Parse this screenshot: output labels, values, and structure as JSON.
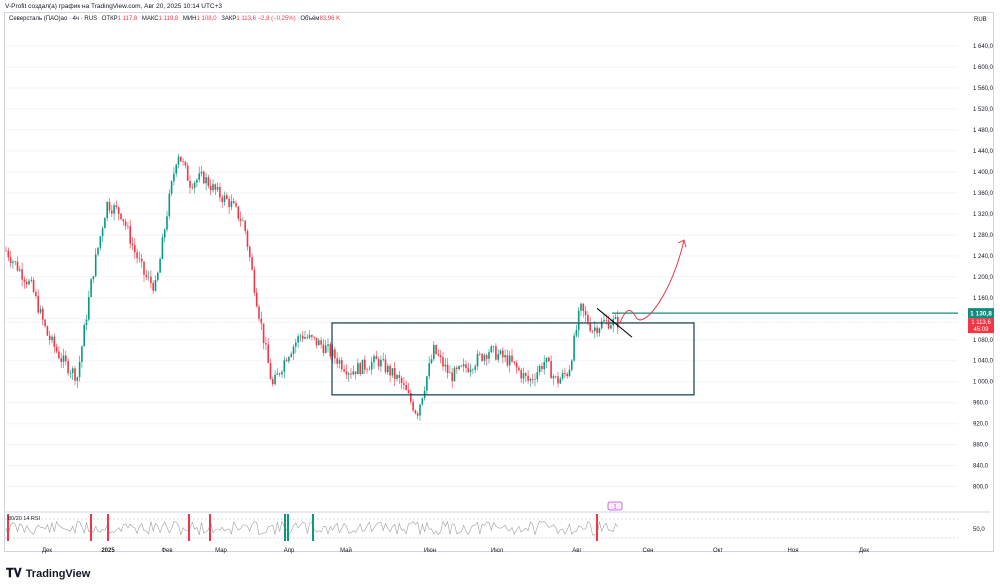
{
  "header": {
    "text": "V-Profit создал(а) график на TradingView.com, Авг 20, 2025 10:14 UTC+3"
  },
  "legend": {
    "symbol": "Северсталь (ПАО)ао · 4ч · RUS",
    "open_label": "ОТКР",
    "open_value": "1 117,8",
    "high_label": "МАКС",
    "high_value": "1 119,8",
    "low_label": "МИН",
    "low_value": "1 108,0",
    "close_label": "ЗАКР",
    "close_value": "1 113,6",
    "change_value": "−2,8 (−0,25%)",
    "volume_label": "Объём",
    "volume_value": "83,96 K"
  },
  "currency": "RUB",
  "rsi": {
    "label": "80/20 14 RSI",
    "level_label": "50,0"
  },
  "footer": {
    "brand": "TradingView"
  },
  "colors": {
    "up": "#089981",
    "down": "#f23645",
    "box": "#0d3d4a",
    "level_line": "#138a7e",
    "arrow": "#e53c4a",
    "rsi_line": "#9e9e9e",
    "grid": "#f0f3fa"
  },
  "chart_data": {
    "type": "candlestick",
    "ylim": [
      765,
      1680
    ],
    "y_ticks": [
      "1 640,0",
      "1 600,0",
      "1 560,0",
      "1 520,0",
      "1 480,0",
      "1 440,0",
      "1 400,0",
      "1 360,0",
      "1 320,0",
      "1 280,0",
      "1 240,0",
      "1 200,0",
      "1 160,0",
      "1 120,0",
      "1 080,0",
      "1 040,0",
      "1 000,0",
      "960,0",
      "920,0",
      "880,0",
      "840,0",
      "800,0"
    ],
    "x_labels": [
      "Дек",
      "2025",
      "Фев",
      "Мар",
      "Апр",
      "Май",
      "Июн",
      "Июл",
      "Авг",
      "Сен",
      "Окт",
      "Ноя",
      "Дек"
    ],
    "price_path": [
      [
        "Дек",
        1250
      ],
      [
        "Дек",
        1180
      ],
      [
        "Дек",
        1090
      ],
      [
        "Дек",
        1040
      ],
      [
        "2025",
        1010
      ],
      [
        "2025",
        1200
      ],
      [
        "2025",
        1340
      ],
      [
        "2025",
        1320
      ],
      [
        "Фев",
        1250
      ],
      [
        "Фев",
        1200
      ],
      [
        "Фев",
        1180
      ],
      [
        "Фев",
        1320
      ],
      [
        "Фев",
        1440
      ],
      [
        "Мар",
        1380
      ],
      [
        "Мар",
        1390
      ],
      [
        "Мар",
        1360
      ],
      [
        "Мар",
        1340
      ],
      [
        "Мар",
        1300
      ],
      [
        "Апр",
        1140
      ],
      [
        "Апр",
        990
      ],
      [
        "Апр",
        1050
      ],
      [
        "Апр",
        1090
      ],
      [
        "Май",
        1070
      ],
      [
        "Май",
        1020
      ],
      [
        "Май",
        1040
      ],
      [
        "Июн",
        1000
      ],
      [
        "Июн",
        940
      ],
      [
        "Июн",
        1060
      ],
      [
        "Июн",
        1010
      ],
      [
        "Июл",
        1030
      ],
      [
        "Июл",
        1060
      ],
      [
        "Июл",
        1040
      ],
      [
        "Июл",
        1000
      ],
      [
        "Авг",
        1040
      ],
      [
        "Авг",
        1000
      ],
      [
        "Авг",
        1020
      ],
      [
        "Авг",
        1140
      ],
      [
        "Авг",
        1100
      ],
      [
        "Авг",
        1113.6
      ]
    ],
    "range_box": {
      "top": 1112,
      "bottom": 975
    },
    "resistance_level": 1130.8,
    "projection_target": 1270,
    "price_labels": {
      "level": "1 130,8",
      "last": "1 113,6",
      "countdown": "45:09"
    },
    "marker": {
      "label": "1"
    }
  }
}
